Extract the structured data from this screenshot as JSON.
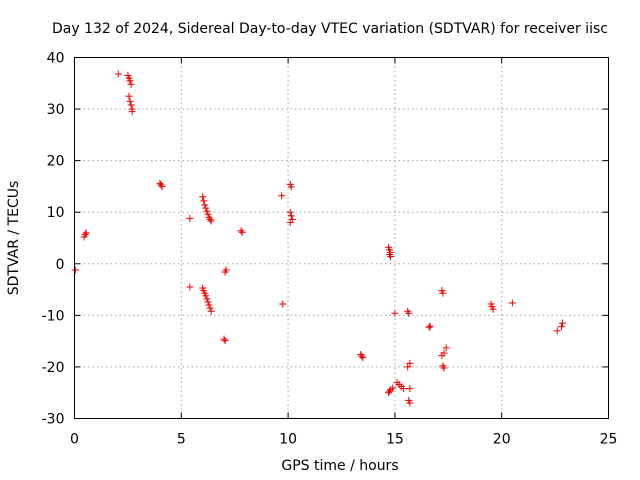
{
  "chart_data": {
    "type": "scatter",
    "title": "Day 132 of 2024, Sidereal Day-to-day VTEC variation (SDTVAR) for receiver iisc",
    "xlabel": "GPS time / hours",
    "ylabel": "SDTVAR / TECUs",
    "xlim": [
      0,
      25
    ],
    "ylim": [
      -30,
      40
    ],
    "xticks": [
      0,
      5,
      10,
      15,
      20,
      25
    ],
    "yticks": [
      -30,
      -20,
      -10,
      0,
      10,
      20,
      30,
      40
    ],
    "grid": true,
    "marker": "+",
    "color": "#ee0000",
    "series": [
      {
        "name": "SDTVAR",
        "x": [
          0.05,
          0.45,
          0.5,
          0.55,
          2.05,
          2.5,
          2.55,
          2.6,
          2.65,
          2.55,
          2.6,
          2.65,
          2.7,
          2.7,
          4.0,
          4.05,
          4.1,
          5.4,
          5.4,
          6.0,
          6.05,
          6.1,
          6.15,
          6.2,
          6.25,
          6.3,
          6.35,
          6.4,
          6.0,
          6.05,
          6.1,
          6.15,
          6.2,
          6.25,
          6.3,
          6.35,
          6.4,
          7.0,
          7.05,
          7.1,
          7.05,
          7.8,
          7.85,
          9.7,
          9.75,
          10.1,
          10.15,
          10.1,
          10.15,
          10.2,
          10.1,
          13.4,
          13.45,
          13.5,
          14.7,
          14.75,
          14.8,
          14.75,
          14.8,
          14.7,
          14.75,
          14.8,
          14.9,
          15.0,
          15.1,
          15.2,
          15.3,
          15.4,
          15.6,
          15.65,
          15.7,
          15.6,
          15.7,
          15.65,
          15.7,
          16.6,
          16.65,
          17.2,
          17.25,
          17.3,
          17.2,
          17.25,
          17.3,
          17.4,
          19.5,
          19.55,
          19.6,
          20.5,
          22.6,
          22.8,
          22.85
        ],
        "y": [
          -1.2,
          5.2,
          5.7,
          6.0,
          36.8,
          36.5,
          36.0,
          35.5,
          34.8,
          32.5,
          31.5,
          30.8,
          30.0,
          29.5,
          15.6,
          15.3,
          15.0,
          8.8,
          -4.5,
          13.0,
          12.2,
          11.4,
          10.8,
          10.2,
          9.6,
          9.0,
          8.6,
          8.3,
          -4.7,
          -5.2,
          -5.7,
          -6.2,
          -6.8,
          -7.4,
          -8.0,
          -8.6,
          -9.2,
          -14.6,
          -14.9,
          -1.2,
          -1.6,
          6.4,
          6.1,
          13.2,
          -7.8,
          15.4,
          14.9,
          10.0,
          9.3,
          8.6,
          8.0,
          -17.6,
          -17.9,
          -18.2,
          3.2,
          2.7,
          2.2,
          1.8,
          1.4,
          -25.0,
          -24.7,
          -24.4,
          -24.1,
          -9.6,
          -23.0,
          -23.4,
          -23.8,
          -24.2,
          -9.2,
          -9.6,
          -19.3,
          -20.0,
          -24.2,
          -26.5,
          -27.0,
          -12.3,
          -12.1,
          -5.2,
          -5.7,
          -17.3,
          -17.8,
          -19.8,
          -20.2,
          -16.3,
          -7.8,
          -8.3,
          -8.8,
          -7.6,
          -13.0,
          -12.2,
          -11.5
        ]
      }
    ]
  }
}
